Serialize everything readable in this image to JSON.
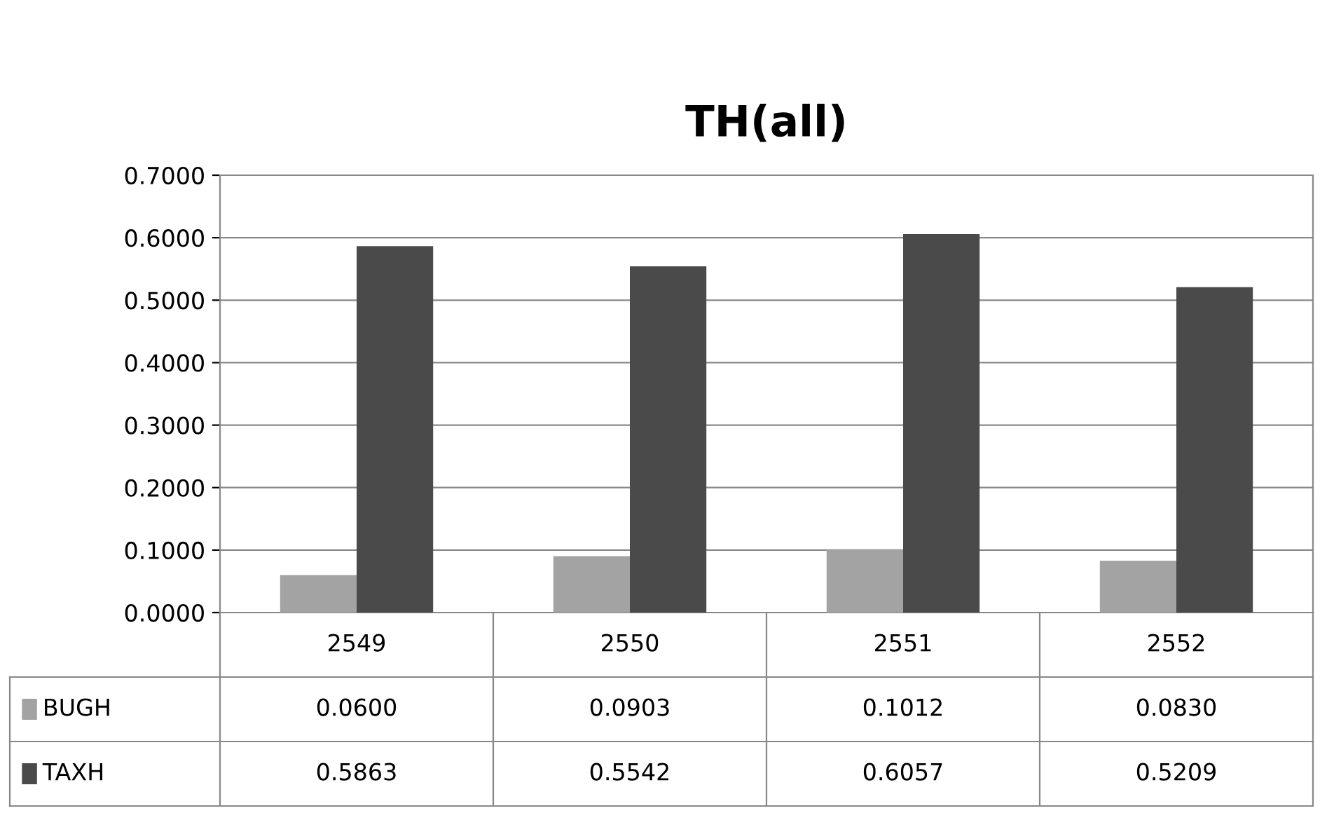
{
  "chart_data": {
    "type": "bar",
    "title": "TH(all)",
    "categories": [
      "2549",
      "2550",
      "2551",
      "2552"
    ],
    "series": [
      {
        "name": "BUGH",
        "color": "#a3a3a3",
        "values": [
          0.06,
          0.0903,
          0.1012,
          0.083
        ],
        "value_labels": [
          "0.0600",
          "0.0903",
          "0.1012",
          "0.0830"
        ]
      },
      {
        "name": "TAXH",
        "color": "#4a4a4a",
        "values": [
          0.5863,
          0.5542,
          0.6057,
          0.5209
        ],
        "value_labels": [
          "0.5863",
          "0.5542",
          "0.6057",
          "0.5209"
        ]
      }
    ],
    "ylim": [
      0,
      0.7
    ],
    "yticks": [
      {
        "value": 0,
        "label": "0.0000"
      },
      {
        "value": 0.1,
        "label": "0.1000"
      },
      {
        "value": 0.2,
        "label": "0.2000"
      },
      {
        "value": 0.3,
        "label": "0.3000"
      },
      {
        "value": 0.4,
        "label": "0.4000"
      },
      {
        "value": 0.5,
        "label": "0.5000"
      },
      {
        "value": 0.6,
        "label": "0.6000"
      },
      {
        "value": 0.7,
        "label": "0.7000"
      }
    ],
    "grid": "y",
    "legend": "bottom left"
  }
}
